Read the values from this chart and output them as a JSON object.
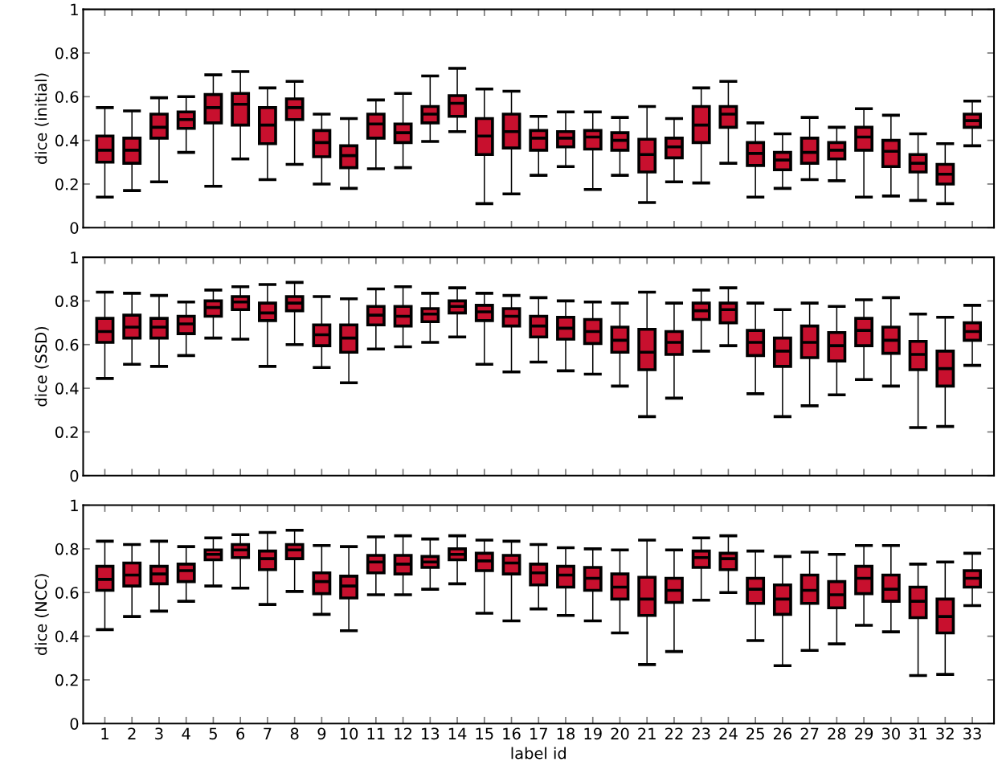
{
  "chart_data": [
    {
      "type": "box",
      "ylabel": "dice (initial)",
      "categories": [
        "1",
        "2",
        "3",
        "4",
        "5",
        "6",
        "7",
        "8",
        "9",
        "10",
        "11",
        "12",
        "13",
        "14",
        "15",
        "16",
        "17",
        "18",
        "19",
        "20",
        "21",
        "22",
        "23",
        "24",
        "25",
        "26",
        "27",
        "28",
        "29",
        "30",
        "31",
        "32",
        "33"
      ],
      "color": "#c8102e",
      "ylim": [
        0,
        1
      ],
      "yticks": [
        0,
        0.2,
        0.4,
        0.6,
        0.8,
        1
      ],
      "tick_labels": "y",
      "grid": false,
      "boxes": [
        {
          "low": 0.14,
          "q1": 0.3,
          "median": 0.355,
          "q3": 0.42,
          "high": 0.55
        },
        {
          "low": 0.17,
          "q1": 0.295,
          "median": 0.355,
          "q3": 0.41,
          "high": 0.535
        },
        {
          "low": 0.21,
          "q1": 0.41,
          "median": 0.46,
          "q3": 0.52,
          "high": 0.595
        },
        {
          "low": 0.345,
          "q1": 0.455,
          "median": 0.495,
          "q3": 0.53,
          "high": 0.6
        },
        {
          "low": 0.19,
          "q1": 0.48,
          "median": 0.55,
          "q3": 0.61,
          "high": 0.7
        },
        {
          "low": 0.315,
          "q1": 0.47,
          "median": 0.565,
          "q3": 0.615,
          "high": 0.715
        },
        {
          "low": 0.22,
          "q1": 0.385,
          "median": 0.47,
          "q3": 0.55,
          "high": 0.64
        },
        {
          "low": 0.29,
          "q1": 0.495,
          "median": 0.55,
          "q3": 0.59,
          "high": 0.67
        },
        {
          "low": 0.2,
          "q1": 0.325,
          "median": 0.39,
          "q3": 0.445,
          "high": 0.52
        },
        {
          "low": 0.18,
          "q1": 0.275,
          "median": 0.33,
          "q3": 0.375,
          "high": 0.5
        },
        {
          "low": 0.27,
          "q1": 0.41,
          "median": 0.475,
          "q3": 0.52,
          "high": 0.585
        },
        {
          "low": 0.275,
          "q1": 0.39,
          "median": 0.435,
          "q3": 0.475,
          "high": 0.615
        },
        {
          "low": 0.395,
          "q1": 0.48,
          "median": 0.52,
          "q3": 0.555,
          "high": 0.695
        },
        {
          "low": 0.44,
          "q1": 0.51,
          "median": 0.57,
          "q3": 0.605,
          "high": 0.73
        },
        {
          "low": 0.11,
          "q1": 0.335,
          "median": 0.42,
          "q3": 0.5,
          "high": 0.635
        },
        {
          "low": 0.155,
          "q1": 0.365,
          "median": 0.44,
          "q3": 0.52,
          "high": 0.625
        },
        {
          "low": 0.24,
          "q1": 0.355,
          "median": 0.41,
          "q3": 0.445,
          "high": 0.51
        },
        {
          "low": 0.28,
          "q1": 0.37,
          "median": 0.41,
          "q3": 0.44,
          "high": 0.53
        },
        {
          "low": 0.175,
          "q1": 0.36,
          "median": 0.415,
          "q3": 0.445,
          "high": 0.53
        },
        {
          "low": 0.24,
          "q1": 0.355,
          "median": 0.4,
          "q3": 0.435,
          "high": 0.505
        },
        {
          "low": 0.115,
          "q1": 0.255,
          "median": 0.335,
          "q3": 0.405,
          "high": 0.555
        },
        {
          "low": 0.21,
          "q1": 0.32,
          "median": 0.37,
          "q3": 0.41,
          "high": 0.5
        },
        {
          "low": 0.205,
          "q1": 0.39,
          "median": 0.47,
          "q3": 0.555,
          "high": 0.64
        },
        {
          "low": 0.295,
          "q1": 0.46,
          "median": 0.52,
          "q3": 0.555,
          "high": 0.67
        },
        {
          "low": 0.14,
          "q1": 0.285,
          "median": 0.34,
          "q3": 0.39,
          "high": 0.48
        },
        {
          "low": 0.18,
          "q1": 0.265,
          "median": 0.31,
          "q3": 0.345,
          "high": 0.43
        },
        {
          "low": 0.22,
          "q1": 0.295,
          "median": 0.345,
          "q3": 0.41,
          "high": 0.505
        },
        {
          "low": 0.215,
          "q1": 0.315,
          "median": 0.355,
          "q3": 0.39,
          "high": 0.46
        },
        {
          "low": 0.14,
          "q1": 0.355,
          "median": 0.415,
          "q3": 0.46,
          "high": 0.545
        },
        {
          "low": 0.145,
          "q1": 0.28,
          "median": 0.35,
          "q3": 0.4,
          "high": 0.515
        },
        {
          "low": 0.125,
          "q1": 0.255,
          "median": 0.295,
          "q3": 0.335,
          "high": 0.43
        },
        {
          "low": 0.11,
          "q1": 0.2,
          "median": 0.245,
          "q3": 0.29,
          "high": 0.385
        },
        {
          "low": 0.375,
          "q1": 0.46,
          "median": 0.49,
          "q3": 0.52,
          "high": 0.58
        }
      ]
    },
    {
      "type": "box",
      "ylabel": "dice (SSD)",
      "categories": [
        "1",
        "2",
        "3",
        "4",
        "5",
        "6",
        "7",
        "8",
        "9",
        "10",
        "11",
        "12",
        "13",
        "14",
        "15",
        "16",
        "17",
        "18",
        "19",
        "20",
        "21",
        "22",
        "23",
        "24",
        "25",
        "26",
        "27",
        "28",
        "29",
        "30",
        "31",
        "32",
        "33"
      ],
      "color": "#c8102e",
      "ylim": [
        0,
        1
      ],
      "yticks": [
        0,
        0.2,
        0.4,
        0.6,
        0.8,
        1
      ],
      "tick_labels": "y",
      "grid": false,
      "boxes": [
        {
          "low": 0.445,
          "q1": 0.61,
          "median": 0.66,
          "q3": 0.72,
          "high": 0.84
        },
        {
          "low": 0.51,
          "q1": 0.63,
          "median": 0.68,
          "q3": 0.735,
          "high": 0.835
        },
        {
          "low": 0.5,
          "q1": 0.63,
          "median": 0.68,
          "q3": 0.72,
          "high": 0.825
        },
        {
          "low": 0.55,
          "q1": 0.65,
          "median": 0.695,
          "q3": 0.73,
          "high": 0.795
        },
        {
          "low": 0.63,
          "q1": 0.73,
          "median": 0.77,
          "q3": 0.8,
          "high": 0.85
        },
        {
          "low": 0.625,
          "q1": 0.76,
          "median": 0.795,
          "q3": 0.82,
          "high": 0.865
        },
        {
          "low": 0.5,
          "q1": 0.71,
          "median": 0.745,
          "q3": 0.79,
          "high": 0.875
        },
        {
          "low": 0.6,
          "q1": 0.755,
          "median": 0.79,
          "q3": 0.82,
          "high": 0.885
        },
        {
          "low": 0.495,
          "q1": 0.595,
          "median": 0.645,
          "q3": 0.69,
          "high": 0.82
        },
        {
          "low": 0.425,
          "q1": 0.565,
          "median": 0.63,
          "q3": 0.69,
          "high": 0.81
        },
        {
          "low": 0.58,
          "q1": 0.69,
          "median": 0.735,
          "q3": 0.775,
          "high": 0.855
        },
        {
          "low": 0.59,
          "q1": 0.685,
          "median": 0.73,
          "q3": 0.775,
          "high": 0.865
        },
        {
          "low": 0.61,
          "q1": 0.705,
          "median": 0.74,
          "q3": 0.765,
          "high": 0.835
        },
        {
          "low": 0.635,
          "q1": 0.745,
          "median": 0.775,
          "q3": 0.8,
          "high": 0.86
        },
        {
          "low": 0.51,
          "q1": 0.71,
          "median": 0.75,
          "q3": 0.78,
          "high": 0.835
        },
        {
          "low": 0.475,
          "q1": 0.685,
          "median": 0.73,
          "q3": 0.765,
          "high": 0.825
        },
        {
          "low": 0.52,
          "q1": 0.635,
          "median": 0.685,
          "q3": 0.73,
          "high": 0.815
        },
        {
          "low": 0.48,
          "q1": 0.625,
          "median": 0.675,
          "q3": 0.725,
          "high": 0.8
        },
        {
          "low": 0.465,
          "q1": 0.605,
          "median": 0.66,
          "q3": 0.715,
          "high": 0.795
        },
        {
          "low": 0.41,
          "q1": 0.565,
          "median": 0.62,
          "q3": 0.68,
          "high": 0.79
        },
        {
          "low": 0.27,
          "q1": 0.485,
          "median": 0.565,
          "q3": 0.67,
          "high": 0.84
        },
        {
          "low": 0.355,
          "q1": 0.555,
          "median": 0.61,
          "q3": 0.66,
          "high": 0.79
        },
        {
          "low": 0.57,
          "q1": 0.715,
          "median": 0.755,
          "q3": 0.79,
          "high": 0.85
        },
        {
          "low": 0.595,
          "q1": 0.7,
          "median": 0.76,
          "q3": 0.79,
          "high": 0.86
        },
        {
          "low": 0.375,
          "q1": 0.55,
          "median": 0.61,
          "q3": 0.665,
          "high": 0.79
        },
        {
          "low": 0.27,
          "q1": 0.5,
          "median": 0.57,
          "q3": 0.63,
          "high": 0.76
        },
        {
          "low": 0.32,
          "q1": 0.54,
          "median": 0.61,
          "q3": 0.685,
          "high": 0.79
        },
        {
          "low": 0.37,
          "q1": 0.525,
          "median": 0.595,
          "q3": 0.655,
          "high": 0.775
        },
        {
          "low": 0.44,
          "q1": 0.595,
          "median": 0.665,
          "q3": 0.72,
          "high": 0.805
        },
        {
          "low": 0.41,
          "q1": 0.56,
          "median": 0.62,
          "q3": 0.68,
          "high": 0.815
        },
        {
          "low": 0.22,
          "q1": 0.485,
          "median": 0.555,
          "q3": 0.615,
          "high": 0.74
        },
        {
          "low": 0.225,
          "q1": 0.41,
          "median": 0.49,
          "q3": 0.57,
          "high": 0.725
        },
        {
          "low": 0.505,
          "q1": 0.62,
          "median": 0.66,
          "q3": 0.7,
          "high": 0.78
        }
      ]
    },
    {
      "type": "box",
      "ylabel": "dice (NCC)",
      "xlabel": "label id",
      "categories": [
        "1",
        "2",
        "3",
        "4",
        "5",
        "6",
        "7",
        "8",
        "9",
        "10",
        "11",
        "12",
        "13",
        "14",
        "15",
        "16",
        "17",
        "18",
        "19",
        "20",
        "21",
        "22",
        "23",
        "24",
        "25",
        "26",
        "27",
        "28",
        "29",
        "30",
        "31",
        "32",
        "33"
      ],
      "color": "#c8102e",
      "ylim": [
        0,
        1
      ],
      "yticks": [
        0,
        0.2,
        0.4,
        0.6,
        0.8,
        1
      ],
      "grid": false,
      "boxes": [
        {
          "low": 0.43,
          "q1": 0.61,
          "median": 0.66,
          "q3": 0.72,
          "high": 0.835
        },
        {
          "low": 0.49,
          "q1": 0.63,
          "median": 0.68,
          "q3": 0.735,
          "high": 0.82
        },
        {
          "low": 0.515,
          "q1": 0.64,
          "median": 0.685,
          "q3": 0.72,
          "high": 0.835
        },
        {
          "low": 0.56,
          "q1": 0.65,
          "median": 0.7,
          "q3": 0.73,
          "high": 0.81
        },
        {
          "low": 0.63,
          "q1": 0.75,
          "median": 0.775,
          "q3": 0.795,
          "high": 0.85
        },
        {
          "low": 0.62,
          "q1": 0.76,
          "median": 0.795,
          "q3": 0.82,
          "high": 0.865
        },
        {
          "low": 0.545,
          "q1": 0.705,
          "median": 0.755,
          "q3": 0.79,
          "high": 0.875
        },
        {
          "low": 0.605,
          "q1": 0.755,
          "median": 0.795,
          "q3": 0.82,
          "high": 0.885
        },
        {
          "low": 0.5,
          "q1": 0.595,
          "median": 0.65,
          "q3": 0.69,
          "high": 0.815
        },
        {
          "low": 0.425,
          "q1": 0.575,
          "median": 0.63,
          "q3": 0.675,
          "high": 0.81
        },
        {
          "low": 0.59,
          "q1": 0.69,
          "median": 0.74,
          "q3": 0.77,
          "high": 0.855
        },
        {
          "low": 0.59,
          "q1": 0.685,
          "median": 0.73,
          "q3": 0.77,
          "high": 0.86
        },
        {
          "low": 0.615,
          "q1": 0.715,
          "median": 0.74,
          "q3": 0.765,
          "high": 0.845
        },
        {
          "low": 0.64,
          "q1": 0.75,
          "median": 0.775,
          "q3": 0.8,
          "high": 0.86
        },
        {
          "low": 0.505,
          "q1": 0.7,
          "median": 0.745,
          "q3": 0.78,
          "high": 0.84
        },
        {
          "low": 0.47,
          "q1": 0.685,
          "median": 0.735,
          "q3": 0.77,
          "high": 0.835
        },
        {
          "low": 0.525,
          "q1": 0.635,
          "median": 0.69,
          "q3": 0.73,
          "high": 0.82
        },
        {
          "low": 0.495,
          "q1": 0.625,
          "median": 0.68,
          "q3": 0.72,
          "high": 0.805
        },
        {
          "low": 0.47,
          "q1": 0.61,
          "median": 0.665,
          "q3": 0.715,
          "high": 0.8
        },
        {
          "low": 0.415,
          "q1": 0.57,
          "median": 0.625,
          "q3": 0.685,
          "high": 0.795
        },
        {
          "low": 0.27,
          "q1": 0.495,
          "median": 0.57,
          "q3": 0.67,
          "high": 0.84
        },
        {
          "low": 0.33,
          "q1": 0.555,
          "median": 0.61,
          "q3": 0.665,
          "high": 0.795
        },
        {
          "low": 0.565,
          "q1": 0.715,
          "median": 0.76,
          "q3": 0.79,
          "high": 0.85
        },
        {
          "low": 0.6,
          "q1": 0.705,
          "median": 0.755,
          "q3": 0.78,
          "high": 0.86
        },
        {
          "low": 0.38,
          "q1": 0.55,
          "median": 0.615,
          "q3": 0.665,
          "high": 0.79
        },
        {
          "low": 0.265,
          "q1": 0.5,
          "median": 0.57,
          "q3": 0.635,
          "high": 0.765
        },
        {
          "low": 0.335,
          "q1": 0.55,
          "median": 0.61,
          "q3": 0.68,
          "high": 0.785
        },
        {
          "low": 0.365,
          "q1": 0.53,
          "median": 0.59,
          "q3": 0.65,
          "high": 0.775
        },
        {
          "low": 0.45,
          "q1": 0.595,
          "median": 0.665,
          "q3": 0.72,
          "high": 0.815
        },
        {
          "low": 0.42,
          "q1": 0.56,
          "median": 0.615,
          "q3": 0.68,
          "high": 0.815
        },
        {
          "low": 0.22,
          "q1": 0.485,
          "median": 0.56,
          "q3": 0.625,
          "high": 0.73
        },
        {
          "low": 0.225,
          "q1": 0.415,
          "median": 0.49,
          "q3": 0.57,
          "high": 0.74
        },
        {
          "low": 0.54,
          "q1": 0.625,
          "median": 0.665,
          "q3": 0.7,
          "high": 0.78
        }
      ]
    }
  ]
}
